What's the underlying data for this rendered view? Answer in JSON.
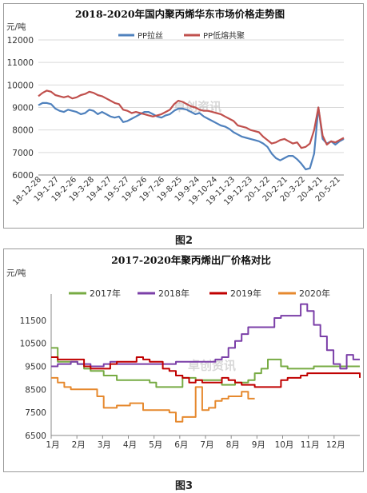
{
  "watermark": "卓创资讯",
  "captions": [
    "图2",
    "图3"
  ],
  "chart_data": [
    {
      "type": "line",
      "title": "2018-2020年国内聚丙烯华东市场价格走势图",
      "ylabel": "元/吨",
      "ylim": [
        6000,
        12000
      ],
      "yticks": [
        6000,
        7000,
        8000,
        9000,
        10000,
        11000,
        12000
      ],
      "x_ticks": [
        "18-12-28",
        "19-1-27",
        "19-2-26",
        "19-3-28",
        "19-4-27",
        "19-5-27",
        "19-6-26",
        "19-7-26",
        "19-8-25",
        "19-9-24",
        "19-10-24",
        "19-11-23",
        "19-12-23",
        "20-1-22",
        "20-2-21",
        "20-3-22",
        "20-4-21",
        "20-5-21"
      ],
      "legend_position": "top-right",
      "grid": "horizontal",
      "series": [
        {
          "name": "PP拉丝",
          "color": "#4f81bd",
          "values": [
            9100,
            9200,
            9200,
            9150,
            8950,
            8850,
            8800,
            8900,
            8850,
            8800,
            8700,
            8750,
            8900,
            8850,
            8700,
            8800,
            8700,
            8600,
            8550,
            8600,
            8350,
            8400,
            8500,
            8600,
            8700,
            8800,
            8800,
            8700,
            8600,
            8550,
            8650,
            8700,
            8850,
            8950,
            8950,
            8900,
            8800,
            8700,
            8750,
            8600,
            8500,
            8400,
            8300,
            8200,
            8150,
            8050,
            7900,
            7800,
            7700,
            7650,
            7600,
            7550,
            7500,
            7400,
            7250,
            6950,
            6750,
            6650,
            6750,
            6850,
            6850,
            6700,
            6500,
            6250,
            6300,
            6950,
            9000,
            7600,
            7400,
            7500,
            7350,
            7500,
            7600
          ]
        },
        {
          "name": "PP低熔共聚",
          "color": "#c0504d",
          "values": [
            9500,
            9650,
            9750,
            9700,
            9550,
            9500,
            9450,
            9500,
            9400,
            9450,
            9550,
            9600,
            9700,
            9650,
            9550,
            9500,
            9400,
            9300,
            9200,
            9150,
            8900,
            8850,
            8750,
            8800,
            8750,
            8700,
            8650,
            8600,
            8650,
            8700,
            8800,
            8900,
            9150,
            9300,
            9250,
            9150,
            9050,
            9000,
            8900,
            8850,
            8850,
            8800,
            8750,
            8700,
            8600,
            8500,
            8400,
            8200,
            8150,
            8100,
            8000,
            7950,
            7900,
            7700,
            7550,
            7400,
            7450,
            7550,
            7600,
            7500,
            7400,
            7450,
            7200,
            7250,
            7400,
            8000,
            9000,
            7750,
            7350,
            7500,
            7450,
            7550,
            7650
          ]
        }
      ]
    },
    {
      "type": "line",
      "title": "2017-2020年聚丙烯出厂价格对比",
      "ylabel": "元/吨",
      "ylim": [
        6500,
        12500
      ],
      "yticks": [
        6500,
        7500,
        8500,
        9500,
        10500,
        11500
      ],
      "x_ticks": [
        "1月",
        "2月",
        "3月",
        "4月",
        "5月",
        "6月",
        "7月",
        "8月",
        "9月",
        "10月",
        "11月",
        "12月"
      ],
      "legend_position": "top",
      "series": [
        {
          "name": "2017年",
          "color": "#77ab43",
          "values": [
            10300,
            9700,
            9700,
            9700,
            9600,
            9400,
            9300,
            9300,
            9100,
            9100,
            8900,
            8900,
            8900,
            8900,
            8900,
            8800,
            8600,
            8600,
            8600,
            8600,
            9000,
            9000,
            8900,
            8900,
            8900,
            8900,
            8700,
            8700,
            8800,
            8800,
            8900,
            9200,
            9400,
            9800,
            9800,
            9500,
            9400,
            9400,
            9400,
            9400,
            9500,
            9500,
            9500,
            9500,
            9500,
            9500,
            9500,
            9500
          ]
        },
        {
          "name": "2018年",
          "color": "#7b3fa8",
          "values": [
            9500,
            9600,
            9600,
            9700,
            9600,
            9600,
            9500,
            9500,
            9600,
            9700,
            9600,
            9600,
            9600,
            9600,
            9600,
            9600,
            9600,
            9600,
            9600,
            9700,
            9700,
            9700,
            9700,
            9700,
            9700,
            9800,
            9900,
            10300,
            10600,
            10900,
            11200,
            11200,
            11200,
            11200,
            11600,
            11700,
            11700,
            11700,
            12200,
            11900,
            11300,
            10800,
            10200,
            9600,
            9400,
            10000,
            9800,
            9800
          ]
        },
        {
          "name": "2019年",
          "color": "#c00000",
          "values": [
            9900,
            9800,
            9800,
            9800,
            9800,
            9500,
            9400,
            9400,
            9400,
            9600,
            9700,
            9700,
            9700,
            9900,
            9800,
            9700,
            9700,
            9400,
            9300,
            9100,
            9000,
            8800,
            8900,
            8800,
            8800,
            8800,
            9000,
            8900,
            8800,
            8700,
            8700,
            8600,
            8600,
            8600,
            8600,
            8900,
            9000,
            9000,
            9100,
            9200,
            9200,
            9200,
            9200,
            9200,
            9200,
            9200,
            9200,
            9000
          ]
        },
        {
          "name": "2020年",
          "color": "#e6892e",
          "values": [
            9000,
            8800,
            8600,
            8500,
            8500,
            8500,
            8500,
            8200,
            7700,
            7700,
            7800,
            7800,
            7900,
            7900,
            7600,
            7600,
            7600,
            7600,
            7500,
            7100,
            7300,
            7300,
            8600,
            7600,
            7700,
            8000,
            8100,
            8200,
            8200,
            8400,
            8100,
            8100
          ]
        }
      ]
    }
  ]
}
